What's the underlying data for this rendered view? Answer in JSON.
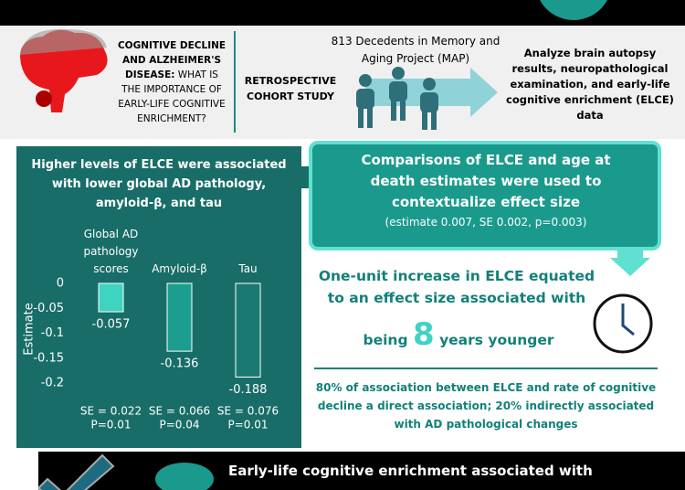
{
  "intro": {
    "question_bold": "COGNITIVE DECLINE AND ALZHEIMER'S DISEASE:",
    "question_rest": "WHAT IS THE IMPORTANCE OF EARLY-LIFE COGNITIVE ENRICHMENT?",
    "design": "RETROSPECTIVE COHORT STUDY",
    "sample": "813 Decedents in Memory and Aging Project (MAP)",
    "analysis": "Analyze brain autopsy results, neuropathological examination, and early-life cognitive enrichment (ELCE) data"
  },
  "chart_data": {
    "type": "bar",
    "title": "Higher levels of ELCE were associated with lower global AD pathology, amyloid-β, and tau",
    "y_label": "Estimate",
    "categories": [
      "Global AD pathology scores",
      "Amyloid-β",
      "Tau"
    ],
    "values": [
      -0.057,
      -0.136,
      -0.188
    ],
    "colors": [
      "#3fd3c2",
      "#1b9e90",
      "#1a7a72"
    ],
    "ylim": [
      0,
      -0.2
    ],
    "yticks": [
      0,
      -0.05,
      -0.1,
      -0.15,
      -0.2
    ],
    "notes": [
      [
        "SE = 0.022",
        "P=0.01"
      ],
      [
        "SE = 0.066",
        "P=0.04"
      ],
      [
        "SE = 0.076",
        "P=0.01"
      ]
    ]
  },
  "comparison": {
    "text": "Comparisons of ELCE and age at death estimates were used to contextualize effect size",
    "stats": "(estimate 0.007, SE 0.002, p=0.003)"
  },
  "effect": {
    "text": "One-unit increase in ELCE equated to an effect size associated with",
    "before": "being",
    "number": "8",
    "after": "years younger"
  },
  "mediation": "80% of association between ELCE and rate of cognitive decline a direct association; 20% indirectly associated with AD pathological changes",
  "conclusion": "Early-life cognitive enrichment associated with"
}
